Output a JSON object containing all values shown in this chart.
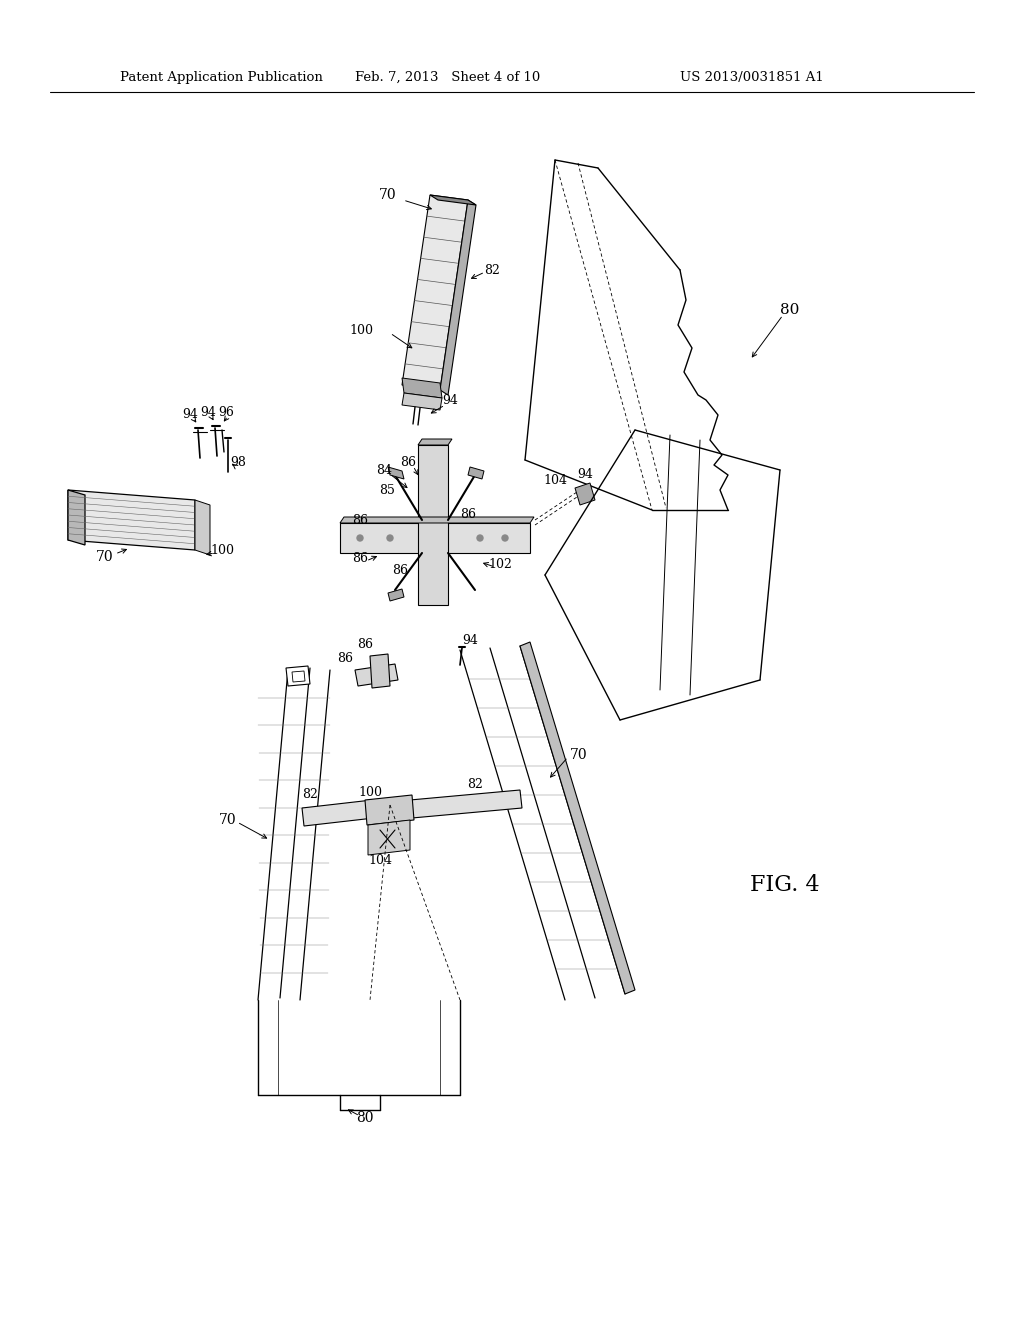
{
  "background_color": "#ffffff",
  "header_left": "Patent Application Publication",
  "header_center": "Feb. 7, 2013   Sheet 4 of 10",
  "header_right": "US 2013/0031851 A1",
  "figure_label": "FIG. 4",
  "header_font_size": 9.5,
  "figure_font_size": 16,
  "label_font_size": 9
}
